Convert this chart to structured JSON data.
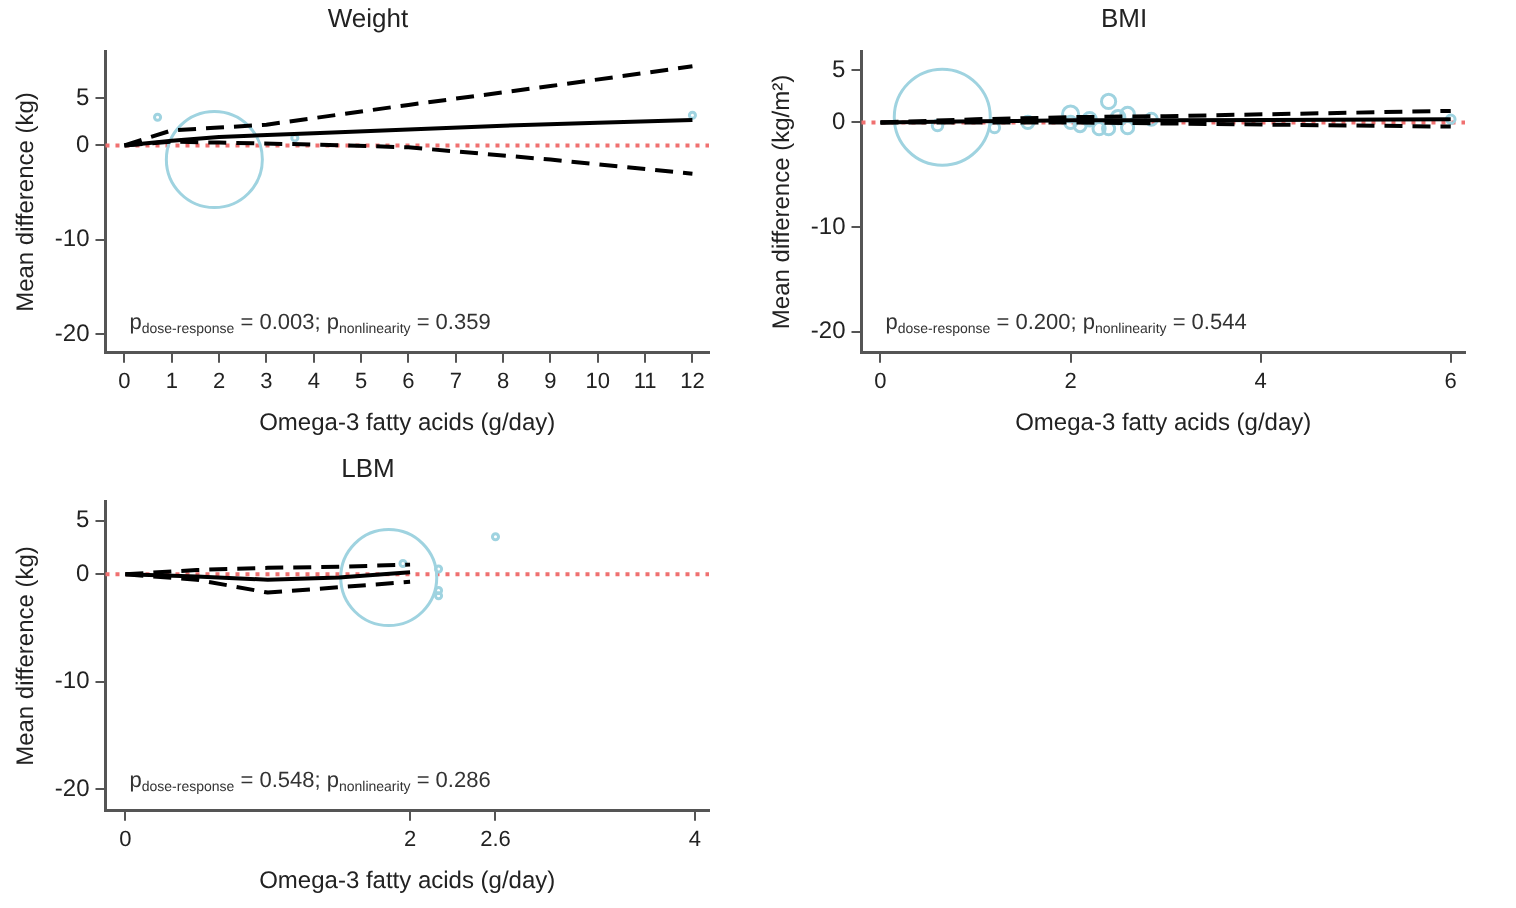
{
  "chart_data": [
    {
      "type": "line",
      "title": "Weight",
      "xlabel": "Omega-3 fatty acids (g/day)",
      "ylabel": "Mean difference (kg)",
      "xlim": [
        -0.4,
        12.35
      ],
      "xticks": [
        0,
        1,
        2,
        3,
        4,
        5,
        6,
        7,
        8,
        9,
        10,
        11,
        12
      ],
      "ylim": [
        -22,
        10
      ],
      "yticks": [
        5,
        0,
        -10,
        -20
      ],
      "grid": false,
      "legend": false,
      "ref_lines": [
        {
          "axis": "y",
          "value": 0,
          "color": "#f07070",
          "line_style": "dotted"
        }
      ],
      "annotations": [
        "p$_{dose-response}$ = 0.003; p$_{nonlinearity}$ = 0.359"
      ],
      "series": [
        {
          "type": "bubble",
          "color": "#9fd3e0",
          "x": [
            1.9,
            0.7,
            3.6,
            12
          ],
          "values": [
            -1.5,
            3,
            0.8,
            3.2
          ],
          "sizes": [
            1,
            0.004,
            0.004,
            0.004
          ]
        },
        {
          "color": "#000000",
          "line_style": "solid",
          "marker": "none",
          "x": [
            0,
            1,
            2,
            4,
            6,
            8,
            10,
            12
          ],
          "values": [
            0,
            0.5,
            0.9,
            1.3,
            1.7,
            2.1,
            2.4,
            2.7
          ]
        },
        {
          "color": "#000000",
          "line_style": "dashed",
          "marker": "none",
          "x": [
            0,
            1,
            2,
            3,
            6,
            9,
            12
          ],
          "values": [
            0,
            1.6,
            1.9,
            2.2,
            4.3,
            6.3,
            8.4
          ]
        },
        {
          "color": "#000000",
          "line_style": "dashed",
          "marker": "none",
          "x": [
            0,
            1,
            2,
            4,
            6,
            9,
            12
          ],
          "values": [
            0,
            0.4,
            0.3,
            0.1,
            -0.2,
            -1.5,
            -3
          ]
        }
      ]
    },
    {
      "type": "line",
      "title": "BMI",
      "xlabel": "Omega-3 fatty acids (g/day)",
      "ylabel": "Mean difference (kg/m²)",
      "xlim": [
        -0.2,
        6.15
      ],
      "xticks": [
        0,
        2,
        4,
        6
      ],
      "ylim": [
        -22,
        6.8
      ],
      "yticks": [
        5,
        0,
        -10,
        -20
      ],
      "grid": false,
      "legend": false,
      "ref_lines": [
        {
          "axis": "y",
          "value": 0,
          "color": "#f07070",
          "line_style": "dotted"
        }
      ],
      "annotations": [
        "p$_{dose-response}$ = 0.200; p$_{nonlinearity}$ = 0.544"
      ],
      "series": [
        {
          "type": "bubble",
          "color": "#9fd3e0",
          "x": [
            0.65,
            0.6,
            1.2,
            1.55,
            2.0,
            2.0,
            2.1,
            2.2,
            2.3,
            2.4,
            2.4,
            2.5,
            2.6,
            2.6,
            2.85,
            6.0
          ],
          "values": [
            0.5,
            -0.3,
            -0.5,
            0,
            0.8,
            0,
            -0.3,
            0.3,
            -0.6,
            2,
            -0.6,
            0.5,
            -0.5,
            0.8,
            0.3,
            0.3
          ],
          "sizes": [
            1,
            0.012,
            0.011,
            0.016,
            0.028,
            0.016,
            0.016,
            0.02,
            0.016,
            0.022,
            0.016,
            0.02,
            0.016,
            0.02,
            0.016,
            0.008
          ]
        },
        {
          "color": "#000000",
          "line_style": "solid",
          "marker": "none",
          "x": [
            0,
            1,
            2,
            3,
            6
          ],
          "values": [
            0,
            0.1,
            0.2,
            0.2,
            0.3
          ]
        },
        {
          "color": "#000000",
          "line_style": "dashed",
          "marker": "none",
          "x": [
            0,
            1,
            2,
            3,
            6
          ],
          "values": [
            0,
            0.3,
            0.5,
            0.6,
            1.1
          ]
        },
        {
          "color": "#000000",
          "line_style": "dashed",
          "marker": "none",
          "x": [
            0,
            1,
            2,
            3,
            6
          ],
          "values": [
            0,
            0,
            0,
            -0.1,
            -0.4
          ]
        }
      ]
    },
    {
      "type": "line",
      "title": "LBM",
      "xlabel": "Omega-3 fatty acids (g/day)",
      "ylabel": "Mean difference (kg)",
      "xlim": [
        -0.14,
        4.1
      ],
      "xticks": [
        0,
        2,
        2.6,
        4
      ],
      "ylim": [
        -22,
        6.8
      ],
      "yticks": [
        5,
        0,
        -10,
        -20
      ],
      "grid": false,
      "legend": false,
      "ref_lines": [
        {
          "axis": "y",
          "value": 0,
          "color": "#f07070",
          "line_style": "dotted"
        }
      ],
      "annotations": [
        "p$_{dose-response}$ = 0.548; p$_{nonlinearity}$ = 0.286"
      ],
      "series": [
        {
          "type": "bubble",
          "color": "#9fd3e0",
          "x": [
            1.85,
            2.6,
            2.2,
            2.2,
            2.2,
            1.95
          ],
          "values": [
            -0.3,
            3.5,
            0.5,
            -1.5,
            -2,
            1
          ],
          "sizes": [
            1,
            0.004,
            0.004,
            0.004,
            0.004,
            0.004
          ]
        },
        {
          "color": "#000000",
          "line_style": "solid",
          "marker": "none",
          "x": [
            0,
            0.5,
            1,
            1.5,
            2
          ],
          "values": [
            0,
            -0.2,
            -0.5,
            -0.3,
            0.2
          ]
        },
        {
          "color": "#000000",
          "line_style": "dashed",
          "marker": "none",
          "x": [
            0,
            0.5,
            1,
            1.5,
            2
          ],
          "values": [
            0,
            0.4,
            0.6,
            0.7,
            0.9
          ]
        },
        {
          "color": "#000000",
          "line_style": "dashed",
          "marker": "none",
          "x": [
            0,
            0.5,
            1,
            1.5,
            2
          ],
          "values": [
            0,
            -0.5,
            -1.7,
            -1.2,
            -0.7
          ]
        }
      ]
    }
  ]
}
